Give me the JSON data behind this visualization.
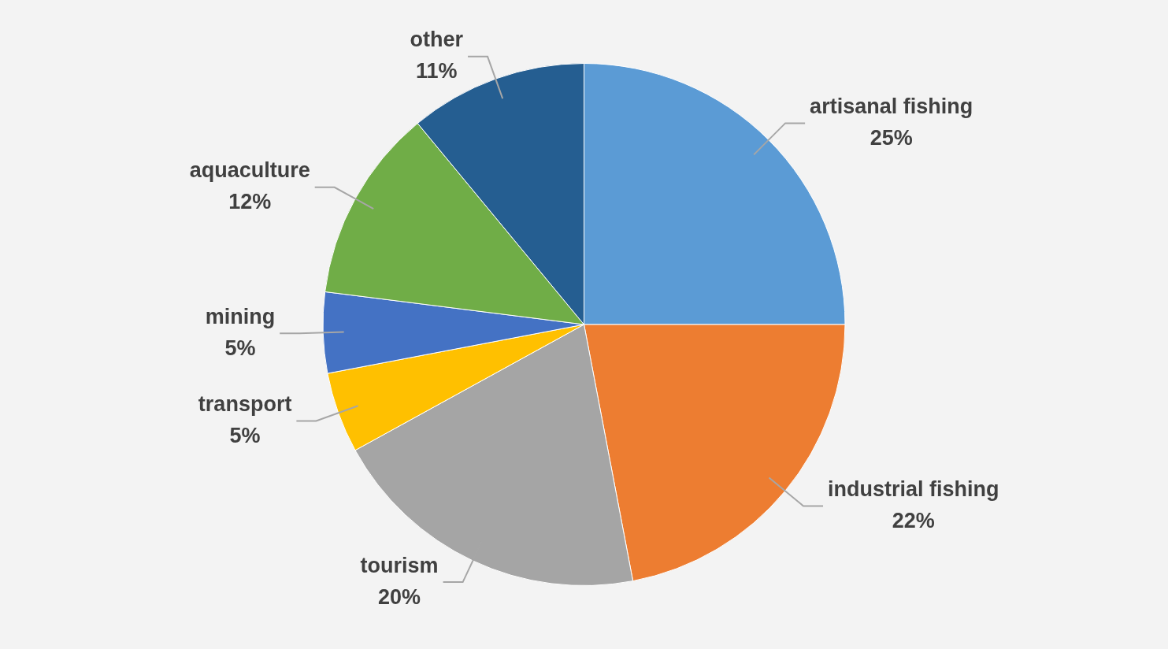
{
  "chart_data": {
    "type": "pie",
    "categories": [
      "artisanal fishing",
      "industrial fishing",
      "tourism",
      "transport",
      "mining",
      "aquaculture",
      "other"
    ],
    "values": [
      25,
      22,
      20,
      5,
      5,
      12,
      11
    ],
    "value_labels": [
      "25%",
      "22%",
      "20%",
      "5%",
      "5%",
      "12%",
      "11%"
    ],
    "colors": [
      "#5b9bd5",
      "#ed7d31",
      "#a5a5a5",
      "#ffc000",
      "#4472c4",
      "#70ad47",
      "#255e91"
    ],
    "legend": false
  }
}
